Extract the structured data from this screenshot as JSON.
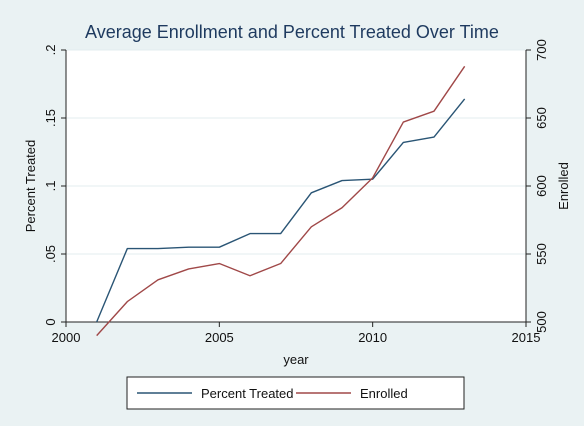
{
  "chart_data": {
    "type": "line",
    "title": "Average Enrollment and Percent Treated Over Time",
    "xlabel": "year",
    "ylabel_left": "Percent Treated",
    "ylabel_right": "Enrolled",
    "xlim": [
      2000,
      2015
    ],
    "xticks": [
      "2000",
      "2005",
      "2010",
      "2015"
    ],
    "ylim_left": [
      0,
      0.2
    ],
    "yticks_left": [
      "0",
      ".05",
      ".1",
      ".15",
      ".2"
    ],
    "ylim_right": [
      500,
      700
    ],
    "yticks_right": [
      "500",
      "550",
      "600",
      "650",
      "700"
    ],
    "grid": true,
    "legend_position": "bottom",
    "x": [
      2001,
      2002,
      2003,
      2004,
      2005,
      2006,
      2007,
      2008,
      2009,
      2010,
      2011,
      2012,
      2013
    ],
    "series": [
      {
        "name": "Percent Treated",
        "axis": "left",
        "color": "#2a5575",
        "values": [
          0.0,
          0.054,
          0.054,
          0.055,
          0.055,
          0.065,
          0.065,
          0.095,
          0.104,
          0.105,
          0.132,
          0.136,
          0.164
        ]
      },
      {
        "name": "Enrolled",
        "axis": "right",
        "color": "#a04848",
        "values": [
          490,
          515,
          531,
          539,
          543,
          534,
          543,
          570,
          584,
          606,
          647,
          655,
          688
        ]
      }
    ]
  }
}
